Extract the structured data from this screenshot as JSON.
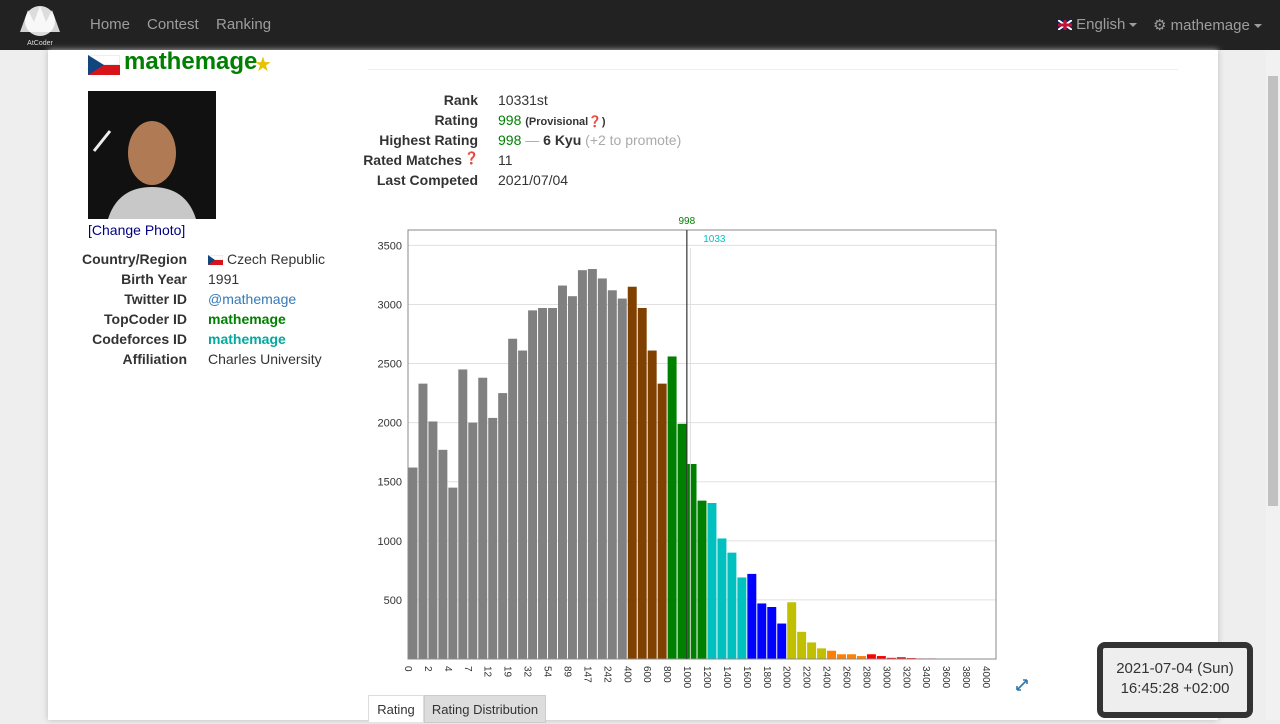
{
  "navbar": {
    "logo": "AtCoder",
    "links": [
      "Home",
      "Contest",
      "Ranking"
    ],
    "language": "English",
    "user": "mathemage"
  },
  "profile": {
    "username": "mathemage",
    "change_photo": "[Change Photo]",
    "info": [
      [
        "Country/Region",
        "Czech Republic"
      ],
      [
        "Birth Year",
        "1991"
      ],
      [
        "Twitter ID",
        "@mathemage"
      ],
      [
        "TopCoder ID",
        "mathemage"
      ],
      [
        "Codeforces ID",
        "mathemage"
      ],
      [
        "Affiliation",
        "Charles University"
      ]
    ]
  },
  "stats": {
    "rank_label": "Rank",
    "rank": "10331st",
    "rating_label": "Rating",
    "rating": "998",
    "provisional": "(Provisional",
    "provisional_end": ")",
    "highest_label": "Highest Rating",
    "highest": "998",
    "separator": "—",
    "kyu": "6 Kyu",
    "promote": "(+2 to promote)",
    "matches_label": "Rated Matches",
    "matches": "11",
    "last_label": "Last Competed",
    "last": "2021/07/04"
  },
  "chart_data": {
    "type": "bar",
    "categories": [
      "0",
      null,
      "2",
      null,
      "4",
      null,
      "7",
      null,
      "12",
      null,
      "19",
      null,
      "32",
      null,
      "54",
      null,
      "89",
      null,
      "147",
      null,
      "242",
      null,
      "400",
      null,
      "600",
      null,
      "800",
      null,
      "1000",
      null,
      "1200",
      null,
      "1400",
      null,
      "1600",
      null,
      "1800",
      null,
      "2000",
      null,
      "2200",
      null,
      "2400",
      null,
      "2600",
      null,
      "2800",
      null,
      "3000",
      null,
      "3200",
      null,
      "3400",
      null,
      "3600",
      null,
      "3800",
      null,
      "4000"
    ],
    "values": [
      1620,
      2330,
      2010,
      1770,
      1450,
      2450,
      2000,
      2380,
      2040,
      2250,
      2710,
      2610,
      2950,
      2970,
      2970,
      3160,
      3070,
      3290,
      3300,
      3220,
      3120,
      3050,
      3150,
      2970,
      2610,
      2330,
      2560,
      1990,
      1650,
      1340,
      1320,
      1020,
      900,
      690,
      720,
      470,
      440,
      300,
      480,
      230,
      140,
      90,
      70,
      40,
      40,
      25,
      40,
      25,
      10,
      15,
      8,
      5,
      5,
      3,
      3,
      2,
      2,
      1,
      1
    ],
    "colors": [
      "#808080",
      "#808080",
      "#808080",
      "#808080",
      "#808080",
      "#808080",
      "#808080",
      "#808080",
      "#808080",
      "#808080",
      "#808080",
      "#808080",
      "#808080",
      "#808080",
      "#808080",
      "#808080",
      "#808080",
      "#808080",
      "#808080",
      "#808080",
      "#808080",
      "#808080",
      "#804000",
      "#804000",
      "#804000",
      "#804000",
      "#008000",
      "#008000",
      "#008000",
      "#008000",
      "#00c0c0",
      "#00c0c0",
      "#00c0c0",
      "#00c0c0",
      "#0000ff",
      "#0000ff",
      "#0000ff",
      "#0000ff",
      "#c0c000",
      "#c0c000",
      "#c0c000",
      "#c0c000",
      "#ff8000",
      "#ff8000",
      "#ff8000",
      "#ff8000",
      "#ff0000",
      "#ff0000",
      "#ff0000",
      "#ff0000",
      "#ff0000",
      "#ff0000",
      "#ff0000",
      "#ff0000",
      "#ff0000",
      "#ff0000",
      "#ff0000",
      "#ff0000",
      "#ff0000"
    ],
    "ylim": [
      0,
      3630
    ],
    "yticks": [
      500,
      1000,
      1500,
      2000,
      2500,
      3000,
      3500
    ],
    "grid": true,
    "markers": [
      {
        "value": 998,
        "color": "#008000"
      },
      {
        "value": 1033,
        "color": "#00c0c0"
      }
    ]
  },
  "tabs": [
    "Rating",
    "Rating Distribution"
  ],
  "clock": {
    "date": "2021-07-04 (Sun)",
    "time": "16:45:28 +02:00"
  }
}
